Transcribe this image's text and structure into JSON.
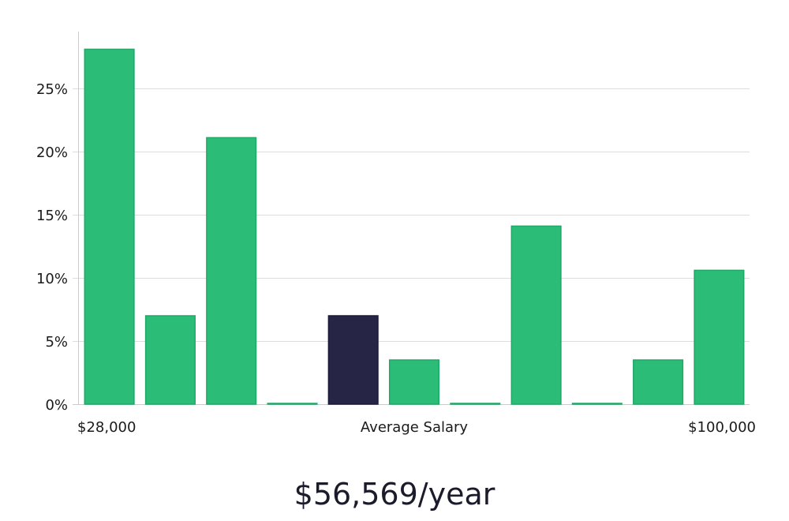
{
  "chart_data": {
    "type": "bar",
    "bins": 11,
    "values": [
      28.1,
      7.0,
      21.1,
      0,
      7.0,
      3.5,
      0,
      14.1,
      0,
      3.5,
      10.6
    ],
    "highlight_index": 4,
    "ylim": [
      0,
      29.5
    ],
    "yticks": [
      0,
      5,
      10,
      15,
      20,
      25
    ],
    "ytick_format": "{v}%",
    "x_min_label": "$28,000",
    "x_center_label": "Average Salary",
    "x_max_label": "$100,000",
    "grid": true,
    "colors": {
      "bar": "#2bbd77",
      "bar_edge": "#21a866",
      "highlight": "#272546",
      "grid": "#dddddd",
      "axis": "#cccccc"
    }
  },
  "summary": {
    "salary": "$56,569/year"
  }
}
